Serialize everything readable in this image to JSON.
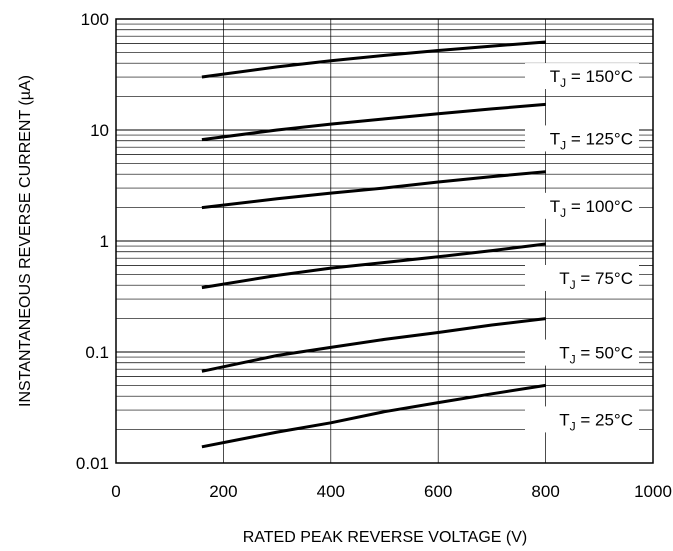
{
  "chart_data": {
    "type": "line",
    "xlabel": "RATED PEAK REVERSE VOLTAGE (V)",
    "ylabel": "INSTANTANEOUS REVERSE CURRENT (µA)",
    "xlim": [
      0,
      1000
    ],
    "ylim": [
      0.01,
      100
    ],
    "y_scale": "log",
    "grid": true,
    "x_ticks": [
      {
        "value": 0,
        "label": "0"
      },
      {
        "value": 200,
        "label": "200"
      },
      {
        "value": 400,
        "label": "400"
      },
      {
        "value": 600,
        "label": "600"
      },
      {
        "value": 800,
        "label": "800"
      },
      {
        "value": 1000,
        "label": "1000"
      }
    ],
    "y_ticks": [
      {
        "value": 0.01,
        "label": "0.01"
      },
      {
        "value": 0.1,
        "label": "0.1"
      },
      {
        "value": 1,
        "label": "1"
      },
      {
        "value": 10,
        "label": "10"
      },
      {
        "value": 100,
        "label": "100"
      }
    ],
    "series": [
      {
        "name": "T_J = 150°C",
        "label_main": "T",
        "label_sub": "J",
        "label_rest": " = 150°C",
        "x": [
          160,
          300,
          400,
          500,
          600,
          700,
          800
        ],
        "values": [
          30,
          37,
          42,
          47,
          52,
          57,
          62
        ]
      },
      {
        "name": "T_J = 125°C",
        "label_main": "T",
        "label_sub": "J",
        "label_rest": " = 125°C",
        "x": [
          160,
          300,
          400,
          500,
          600,
          700,
          800
        ],
        "values": [
          8.2,
          10,
          11.3,
          12.6,
          14,
          15.5,
          17
        ]
      },
      {
        "name": "T_J = 100°C",
        "label_main": "T",
        "label_sub": "J",
        "label_rest": " = 100°C",
        "x": [
          160,
          300,
          400,
          500,
          600,
          700,
          800
        ],
        "values": [
          2.0,
          2.4,
          2.7,
          3.0,
          3.4,
          3.8,
          4.2
        ]
      },
      {
        "name": "T_J = 75°C",
        "label_main": "T",
        "label_sub": "J",
        "label_rest": " = 75°C",
        "x": [
          160,
          300,
          400,
          500,
          600,
          700,
          800
        ],
        "values": [
          0.38,
          0.49,
          0.57,
          0.64,
          0.72,
          0.82,
          0.94
        ]
      },
      {
        "name": "T_J = 50°C",
        "label_main": "T",
        "label_sub": "J",
        "label_rest": " = 50°C",
        "x": [
          160,
          300,
          400,
          500,
          600,
          700,
          800
        ],
        "values": [
          0.067,
          0.093,
          0.11,
          0.13,
          0.15,
          0.175,
          0.2
        ]
      },
      {
        "name": "T_J = 25°C",
        "label_main": "T",
        "label_sub": "J",
        "label_rest": " = 25°C",
        "x": [
          160,
          300,
          400,
          500,
          600,
          700,
          800
        ],
        "values": [
          0.014,
          0.019,
          0.023,
          0.029,
          0.035,
          0.042,
          0.05
        ]
      }
    ]
  }
}
